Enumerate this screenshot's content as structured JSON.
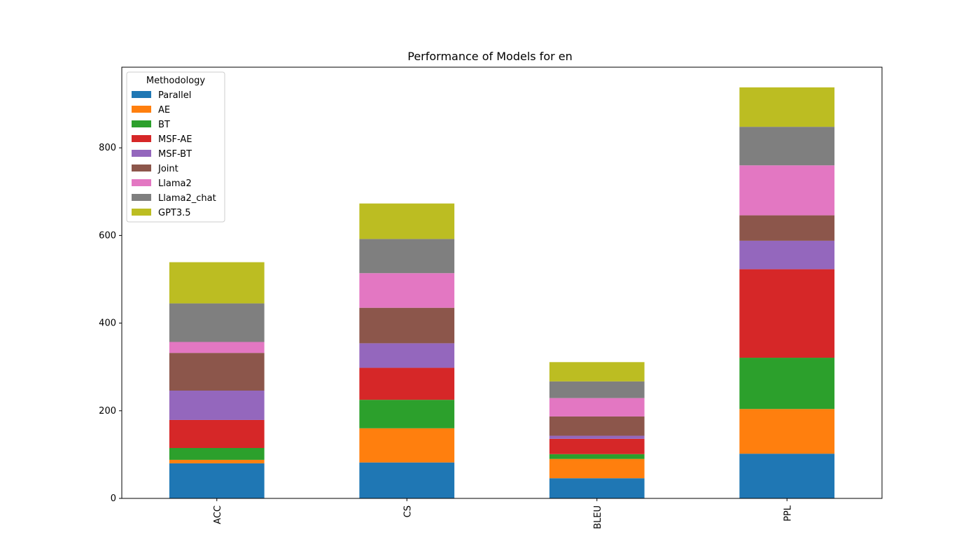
{
  "chart_data": {
    "type": "bar",
    "stacked": true,
    "title": "Performance of Models for en",
    "xlabel": "",
    "ylabel": "",
    "categories": [
      "ACC",
      "CS",
      "BLEU",
      "PPL"
    ],
    "ylim": [
      0,
      984
    ],
    "yticks": [
      0,
      200,
      400,
      600,
      800
    ],
    "legend": {
      "title": "Methodology",
      "placement": "top-left"
    },
    "series": [
      {
        "name": "Parallel",
        "color": "#1f77b4",
        "values": [
          80,
          82,
          46,
          102
        ]
      },
      {
        "name": "AE",
        "color": "#ff7f0e",
        "values": [
          8,
          78,
          44,
          102
        ]
      },
      {
        "name": "BT",
        "color": "#2ca02c",
        "values": [
          27,
          65,
          11,
          117
        ]
      },
      {
        "name": "MSF-AE",
        "color": "#d62728",
        "values": [
          64,
          73,
          35,
          202
        ]
      },
      {
        "name": "MSF-BT",
        "color": "#9467bd",
        "values": [
          67,
          56,
          7,
          65
        ]
      },
      {
        "name": "Joint",
        "color": "#8c564b",
        "values": [
          86,
          81,
          44,
          58
        ]
      },
      {
        "name": "Llama2",
        "color": "#e377c2",
        "values": [
          25,
          79,
          42,
          114
        ]
      },
      {
        "name": "Llama2_chat",
        "color": "#7f7f7f",
        "values": [
          88,
          78,
          38,
          88
        ]
      },
      {
        "name": "GPT3.5",
        "color": "#bcbd22",
        "values": [
          94,
          81,
          44,
          90
        ]
      }
    ]
  }
}
